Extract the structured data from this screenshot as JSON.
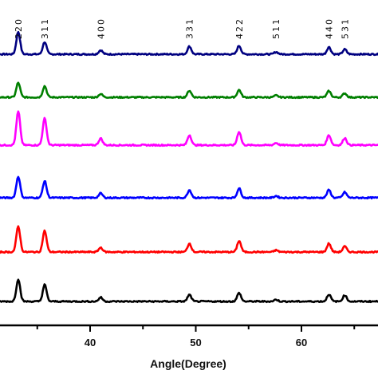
{
  "chart_data": {
    "type": "line",
    "title": "",
    "xlabel": "Angle(Degree)",
    "ylabel": "",
    "xlim": [
      30,
      68
    ],
    "xticks": [
      {
        "value": 40,
        "label": "40"
      },
      {
        "value": 50,
        "label": "50"
      },
      {
        "value": 60,
        "label": "60"
      }
    ],
    "peak_labels": [
      {
        "x": 33.2,
        "label": "220"
      },
      {
        "x": 35.7,
        "label": "311"
      },
      {
        "x": 41.0,
        "label": "400"
      },
      {
        "x": 49.4,
        "label": "331"
      },
      {
        "x": 54.1,
        "label": "422"
      },
      {
        "x": 57.6,
        "label": "511"
      },
      {
        "x": 62.6,
        "label": "440"
      },
      {
        "x": 64.1,
        "label": "531"
      }
    ],
    "grid": false,
    "legend": "none",
    "series": [
      {
        "color": "#000080",
        "peaks": [
          [
            33.2,
            1.0
          ],
          [
            35.7,
            0.55
          ],
          [
            41.0,
            0.18
          ],
          [
            49.4,
            0.35
          ],
          [
            54.1,
            0.38
          ],
          [
            57.6,
            0.1
          ],
          [
            62.6,
            0.32
          ],
          [
            64.1,
            0.22
          ]
        ]
      },
      {
        "color": "#007f00",
        "peaks": [
          [
            33.2,
            0.65
          ],
          [
            35.7,
            0.5
          ],
          [
            41.0,
            0.15
          ],
          [
            49.4,
            0.3
          ],
          [
            54.1,
            0.33
          ],
          [
            57.6,
            0.08
          ],
          [
            62.6,
            0.28
          ],
          [
            64.1,
            0.18
          ]
        ]
      },
      {
        "color": "#ff00ff",
        "peaks": [
          [
            33.2,
            1.5
          ],
          [
            35.7,
            1.2
          ],
          [
            41.0,
            0.3
          ],
          [
            49.4,
            0.45
          ],
          [
            54.1,
            0.6
          ],
          [
            57.6,
            0.1
          ],
          [
            62.6,
            0.45
          ],
          [
            64.1,
            0.32
          ]
        ]
      },
      {
        "color": "#0000ff",
        "peaks": [
          [
            33.2,
            0.95
          ],
          [
            35.7,
            0.75
          ],
          [
            41.0,
            0.2
          ],
          [
            49.4,
            0.35
          ],
          [
            54.1,
            0.42
          ],
          [
            57.6,
            0.08
          ],
          [
            62.6,
            0.35
          ],
          [
            64.1,
            0.25
          ]
        ]
      },
      {
        "color": "#ff0000",
        "peaks": [
          [
            33.2,
            1.15
          ],
          [
            35.7,
            0.95
          ],
          [
            41.0,
            0.2
          ],
          [
            49.4,
            0.38
          ],
          [
            54.1,
            0.5
          ],
          [
            57.6,
            0.08
          ],
          [
            62.6,
            0.38
          ],
          [
            64.1,
            0.25
          ]
        ]
      },
      {
        "color": "#000000",
        "peaks": [
          [
            33.2,
            1.0
          ],
          [
            35.7,
            0.75
          ],
          [
            41.0,
            0.18
          ],
          [
            49.4,
            0.3
          ],
          [
            54.1,
            0.38
          ],
          [
            57.6,
            0.08
          ],
          [
            62.6,
            0.32
          ],
          [
            64.1,
            0.28
          ]
        ]
      }
    ]
  }
}
